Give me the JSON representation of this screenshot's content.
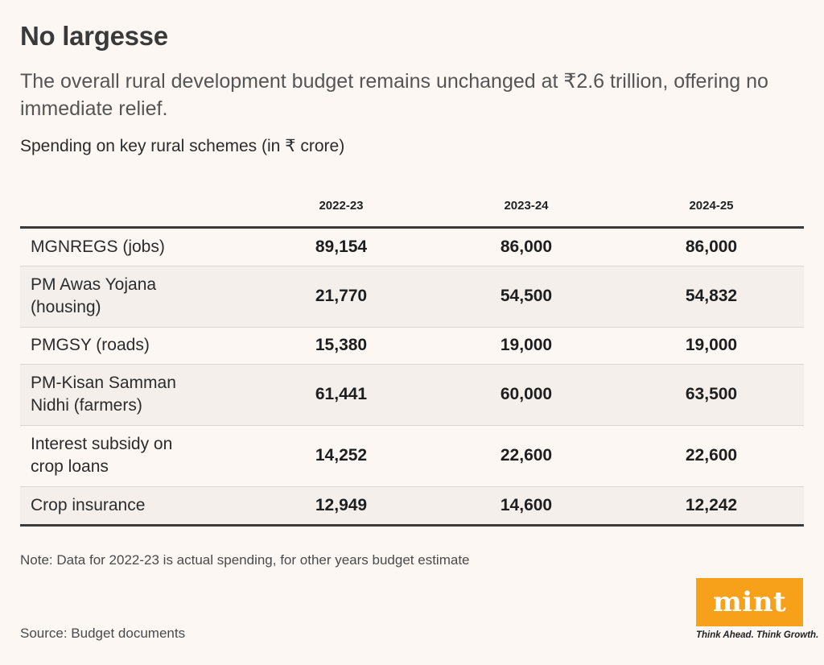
{
  "title": "No largesse",
  "subtitle": "The overall rural development budget remains unchanged at ₹2.6 trillion, offering no immediate relief.",
  "unit_label": "Spending on key rural schemes (in ₹ crore)",
  "note": "Note: Data for 2022-23 is actual spending, for other years budget estimate",
  "source": "Source: Budget documents",
  "logo": {
    "word": "mint",
    "tagline": "Think Ahead. Think Growth."
  },
  "colors": {
    "background": "#fcf7f2",
    "logo_bg": "#f7a11a",
    "stripe": "#f4efea"
  },
  "chart_data": {
    "type": "table",
    "title": "No largesse",
    "columns": [
      "2022-23",
      "2023-24",
      "2024-25"
    ],
    "rows": [
      {
        "label_lines": [
          "MGNREGS (jobs)"
        ],
        "values": [
          "89,154",
          "86,000",
          "86,000"
        ]
      },
      {
        "label_lines": [
          "PM Awas Yojana",
          "(housing)"
        ],
        "values": [
          "21,770",
          "54,500",
          "54,832"
        ]
      },
      {
        "label_lines": [
          "PMGSY (roads)"
        ],
        "values": [
          "15,380",
          "19,000",
          "19,000"
        ]
      },
      {
        "label_lines": [
          "PM-Kisan Samman",
          "Nidhi (farmers)"
        ],
        "values": [
          "61,441",
          "60,000",
          "63,500"
        ]
      },
      {
        "label_lines": [
          "Interest subsidy on",
          "crop loans"
        ],
        "values": [
          "14,252",
          "22,600",
          "22,600"
        ]
      },
      {
        "label_lines": [
          "Crop insurance"
        ],
        "values": [
          "12,949",
          "14,600",
          "12,242"
        ]
      }
    ]
  }
}
